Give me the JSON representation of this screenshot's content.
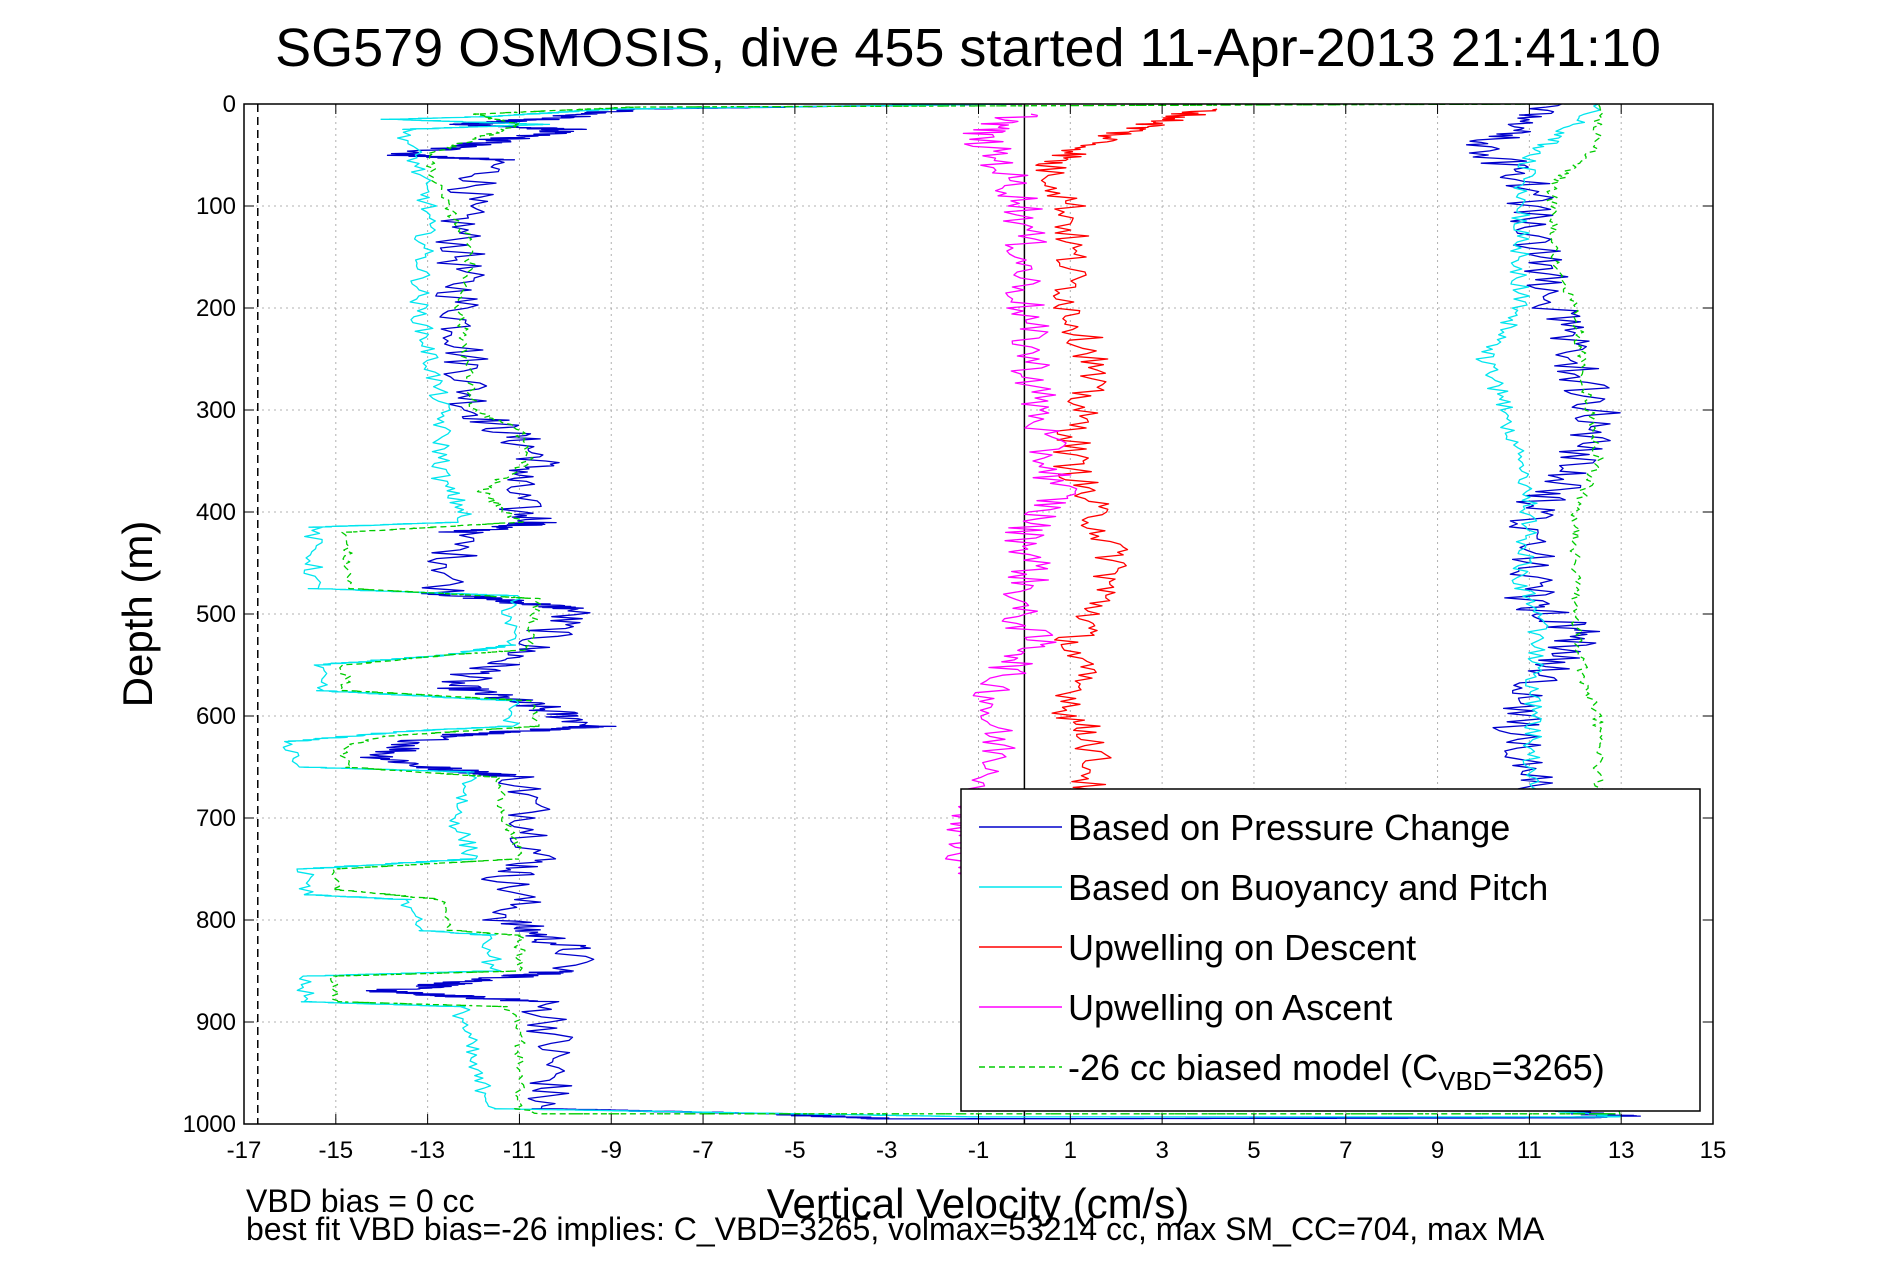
{
  "chart_data": {
    "type": "line",
    "title": "SG579 OSMOSIS, dive 455 started 11-Apr-2013 21:41:10",
    "xlabel": "Vertical Velocity (cm/s)",
    "ylabel": "Depth (m)",
    "xlim": [
      -17,
      15
    ],
    "ylim": [
      0,
      1000
    ],
    "y_reversed": true,
    "grid": true,
    "x_ticks": [
      "-17",
      "-15",
      "-13",
      "-11",
      "-9",
      "-7",
      "-5",
      "-3",
      "-1",
      "1",
      "3",
      "5",
      "7",
      "9",
      "11",
      "13",
      "15"
    ],
    "y_ticks": [
      "0",
      "100",
      "200",
      "300",
      "400",
      "500",
      "600",
      "700",
      "800",
      "900",
      "1000"
    ],
    "legend_position": "bottom-right",
    "legend": [
      {
        "label": "Based on Pressure Change",
        "color": "#0000cc",
        "style": "solid"
      },
      {
        "label": "Based on Buoyancy and Pitch",
        "color": "#00e5ee",
        "style": "solid"
      },
      {
        "label": "Upwelling on Descent",
        "color": "#ff0000",
        "style": "solid"
      },
      {
        "label": "Upwelling on Ascent",
        "color": "#ff00ff",
        "style": "solid"
      },
      {
        "label_pre": "-26 cc biased model (C",
        "label_sub": "VBD",
        "label_post": "=3265)",
        "color": "#00cc00",
        "style": "dashed"
      }
    ],
    "reference_lines": [
      {
        "x": -16.7,
        "style": "dashed",
        "color": "#000000"
      },
      {
        "x": 0,
        "style": "solid",
        "color": "#000000"
      }
    ],
    "footnote_lines": [
      "VBD bias = 0 cc",
      "best fit VBD bias=-26 implies: C_VBD=3265, volmax=53214 cc, max SM_CC=704, max MA"
    ],
    "series": [
      {
        "name": "Based on Pressure Change",
        "color": "#0000cc",
        "noise": 0.55,
        "points": [
          [
            -0.4,
            0
          ],
          [
            -8.6,
            5
          ],
          [
            -10.5,
            15
          ],
          [
            -12.3,
            20
          ],
          [
            -10,
            25
          ],
          [
            -13.5,
            50
          ],
          [
            -11.5,
            55
          ],
          [
            -12.3,
            100
          ],
          [
            -12.3,
            200
          ],
          [
            -12,
            300
          ],
          [
            -11,
            330
          ],
          [
            -10.5,
            350
          ],
          [
            -11.2,
            370
          ],
          [
            -11,
            400
          ],
          [
            -10.5,
            410
          ],
          [
            -12.3,
            420
          ],
          [
            -12.6,
            480
          ],
          [
            -9.8,
            495
          ],
          [
            -10.4,
            520
          ],
          [
            -11,
            540
          ],
          [
            -12.5,
            570
          ],
          [
            -10.7,
            590
          ],
          [
            -9.3,
            610
          ],
          [
            -12.8,
            620
          ],
          [
            -14,
            640
          ],
          [
            -13,
            650
          ],
          [
            -11,
            660
          ],
          [
            -10.7,
            700
          ],
          [
            -10.6,
            740
          ],
          [
            -11.3,
            760
          ],
          [
            -11,
            780
          ],
          [
            -11.3,
            800
          ],
          [
            -9.8,
            830
          ],
          [
            -10,
            850
          ],
          [
            -14,
            870
          ],
          [
            -10.6,
            880
          ],
          [
            -10.3,
            900
          ],
          [
            -10.3,
            960
          ],
          [
            -10.6,
            985
          ],
          [
            -5.5,
            990
          ],
          [
            -3,
            995
          ],
          [
            12,
            994
          ],
          [
            13,
            992
          ],
          [
            11,
            985
          ],
          [
            11,
            700
          ],
          [
            11,
            660
          ],
          [
            10.7,
            600
          ],
          [
            11.3,
            560
          ],
          [
            12.2,
            520
          ],
          [
            11,
            490
          ],
          [
            11,
            400
          ],
          [
            12,
            360
          ],
          [
            12.5,
            300
          ],
          [
            11.5,
            200
          ],
          [
            11.2,
            150
          ],
          [
            11,
            80
          ],
          [
            10,
            40
          ],
          [
            11,
            20
          ],
          [
            11.7,
            0
          ]
        ]
      },
      {
        "name": "Based on Buoyancy and Pitch",
        "color": "#00e5ee",
        "noise": 0.22,
        "points": [
          [
            -0.4,
            0
          ],
          [
            -9,
            5
          ],
          [
            -11.5,
            12
          ],
          [
            -13.8,
            15
          ],
          [
            -10.5,
            20
          ],
          [
            -13.5,
            25
          ],
          [
            -13.3,
            50
          ],
          [
            -13,
            100
          ],
          [
            -13.2,
            200
          ],
          [
            -12.7,
            300
          ],
          [
            -12.7,
            370
          ],
          [
            -12.2,
            400
          ],
          [
            -12.4,
            410
          ],
          [
            -15.5,
            415
          ],
          [
            -15.5,
            475
          ],
          [
            -11.2,
            482
          ],
          [
            -11.2,
            530
          ],
          [
            -12.5,
            540
          ],
          [
            -15.4,
            550
          ],
          [
            -15.4,
            575
          ],
          [
            -11.2,
            585
          ],
          [
            -11.2,
            610
          ],
          [
            -13.5,
            615
          ],
          [
            -16,
            625
          ],
          [
            -15.8,
            650
          ],
          [
            -12,
            655
          ],
          [
            -12.4,
            700
          ],
          [
            -12,
            740
          ],
          [
            -15.7,
            750
          ],
          [
            -15.7,
            775
          ],
          [
            -13.5,
            780
          ],
          [
            -13.2,
            810
          ],
          [
            -11.6,
            815
          ],
          [
            -11.6,
            850
          ],
          [
            -15.7,
            855
          ],
          [
            -15.7,
            880
          ],
          [
            -12.3,
            885
          ],
          [
            -12.2,
            900
          ],
          [
            -12,
            950
          ],
          [
            -11.5,
            985
          ],
          [
            -1,
            993
          ],
          [
            13,
            993
          ],
          [
            11,
            985
          ],
          [
            11,
            700
          ],
          [
            11,
            670
          ],
          [
            11.2,
            500
          ],
          [
            10.8,
            470
          ],
          [
            11,
            400
          ],
          [
            10.5,
            300
          ],
          [
            10,
            250
          ],
          [
            10.8,
            200
          ],
          [
            10.8,
            100
          ],
          [
            11,
            50
          ],
          [
            12,
            20
          ],
          [
            12.5,
            0
          ]
        ]
      },
      {
        "name": "Upwelling on Descent",
        "color": "#ff0000",
        "noise": 0.42,
        "points": [
          [
            4,
            5
          ],
          [
            2,
            30
          ],
          [
            0.5,
            60
          ],
          [
            1,
            100
          ],
          [
            1,
            200
          ],
          [
            1.5,
            250
          ],
          [
            1.2,
            300
          ],
          [
            1,
            350
          ],
          [
            1.5,
            400
          ],
          [
            2,
            450
          ],
          [
            1.5,
            500
          ],
          [
            1,
            530
          ],
          [
            1.2,
            560
          ],
          [
            1,
            600
          ],
          [
            1.5,
            620
          ],
          [
            1.5,
            650
          ],
          [
            1.2,
            690
          ]
        ]
      },
      {
        "name": "Upwelling on Ascent",
        "color": "#ff00ff",
        "noise": 0.48,
        "points": [
          [
            0,
            10
          ],
          [
            -1,
            30
          ],
          [
            -0.5,
            60
          ],
          [
            0,
            100
          ],
          [
            0,
            200
          ],
          [
            0.3,
            300
          ],
          [
            0.5,
            350
          ],
          [
            0.8,
            380
          ],
          [
            0,
            420
          ],
          [
            0.2,
            450
          ],
          [
            -0.2,
            500
          ],
          [
            0.3,
            530
          ],
          [
            -0.5,
            560
          ],
          [
            -0.8,
            600
          ],
          [
            -0.5,
            640
          ],
          [
            -0.8,
            680
          ],
          [
            -1.2,
            700
          ],
          [
            -1.5,
            740
          ],
          [
            -1.3,
            760
          ]
        ]
      },
      {
        "name": "-26 cc biased model (C_VBD=3265)",
        "color": "#00cc00",
        "dashed": true,
        "noise": 0.12,
        "points": [
          [
            11.8,
            0
          ],
          [
            -8.5,
            3
          ],
          [
            -12,
            10
          ],
          [
            -11,
            20
          ],
          [
            -13,
            50
          ],
          [
            -12.8,
            80
          ],
          [
            -12.6,
            100
          ],
          [
            -12,
            140
          ],
          [
            -12.3,
            200
          ],
          [
            -12,
            300
          ],
          [
            -11,
            320
          ],
          [
            -10.8,
            350
          ],
          [
            -11.8,
            380
          ],
          [
            -11.3,
            400
          ],
          [
            -11,
            410
          ],
          [
            -14.8,
            420
          ],
          [
            -14.7,
            475
          ],
          [
            -10.6,
            485
          ],
          [
            -10.8,
            535
          ],
          [
            -12.5,
            540
          ],
          [
            -14.8,
            550
          ],
          [
            -14.8,
            575
          ],
          [
            -10.8,
            585
          ],
          [
            -10.6,
            610
          ],
          [
            -14,
            620
          ],
          [
            -14.8,
            630
          ],
          [
            -14.8,
            650
          ],
          [
            -11.5,
            660
          ],
          [
            -11.3,
            700
          ],
          [
            -11,
            740
          ],
          [
            -15,
            750
          ],
          [
            -15,
            770
          ],
          [
            -12.7,
            780
          ],
          [
            -12.5,
            810
          ],
          [
            -11,
            815
          ],
          [
            -11,
            850
          ],
          [
            -15,
            855
          ],
          [
            -15,
            880
          ],
          [
            -11.3,
            885
          ],
          [
            -11,
            900
          ],
          [
            -11,
            950
          ],
          [
            -11,
            985
          ],
          [
            -10.5,
            990
          ],
          [
            13,
            990
          ],
          [
            12.5,
            960
          ],
          [
            12.5,
            700
          ],
          [
            12.5,
            660
          ],
          [
            12.5,
            600
          ],
          [
            12.2,
            570
          ],
          [
            12,
            500
          ],
          [
            12,
            400
          ],
          [
            12.5,
            350
          ],
          [
            12.3,
            300
          ],
          [
            12,
            200
          ],
          [
            11.5,
            150
          ],
          [
            11.5,
            80
          ],
          [
            12.5,
            40
          ],
          [
            12.5,
            0
          ]
        ]
      }
    ]
  }
}
